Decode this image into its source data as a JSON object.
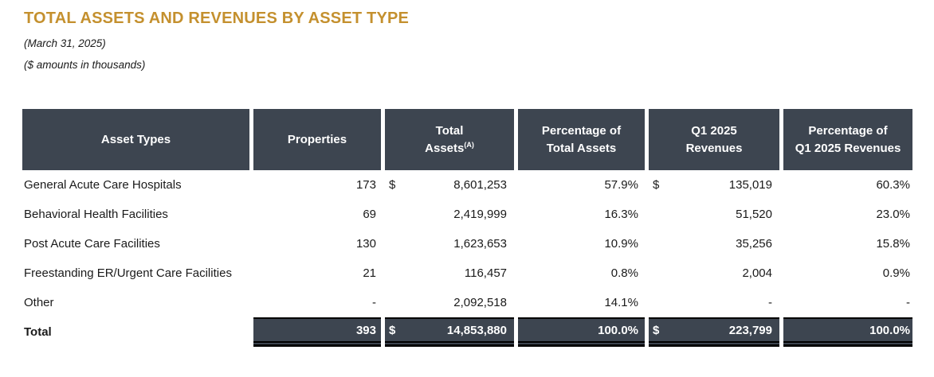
{
  "page": {
    "title": "TOTAL ASSETS AND REVENUES BY ASSET TYPE",
    "subtitle_date": "(March 31, 2025)",
    "subtitle_units": "($ amounts in thousands)"
  },
  "colors": {
    "accent_gold": "#C4902E",
    "header_slate": "#3D4550",
    "underline_black": "#000000"
  },
  "table": {
    "columns": [
      {
        "label": "Asset Types"
      },
      {
        "label": "Properties"
      },
      {
        "label_line1": "Total",
        "label_line2": "Assets",
        "superscript": "(A)"
      },
      {
        "label_line1": "Percentage of",
        "label_line2": "Total Assets"
      },
      {
        "label_line1": "Q1 2025",
        "label_line2": "Revenues"
      },
      {
        "label_line1": "Percentage of",
        "label_line2": "Q1 2025 Revenues"
      }
    ],
    "rows": [
      {
        "asset_type": "General Acute Care Hospitals",
        "properties": "173",
        "total_assets_currency": "$",
        "total_assets": "8,601,253",
        "pct_total_assets": "57.9%",
        "q1_revenues_currency": "$",
        "q1_revenues": "135,019",
        "pct_q1_revenues": "60.3%"
      },
      {
        "asset_type": "Behavioral Health Facilities",
        "properties": "69",
        "total_assets_currency": "",
        "total_assets": "2,419,999",
        "pct_total_assets": "16.3%",
        "q1_revenues_currency": "",
        "q1_revenues": "51,520",
        "pct_q1_revenues": "23.0%"
      },
      {
        "asset_type": "Post Acute Care Facilities",
        "properties": "130",
        "total_assets_currency": "",
        "total_assets": "1,623,653",
        "pct_total_assets": "10.9%",
        "q1_revenues_currency": "",
        "q1_revenues": "35,256",
        "pct_q1_revenues": "15.8%"
      },
      {
        "asset_type": "Freestanding ER/Urgent Care Facilities",
        "properties": "21",
        "total_assets_currency": "",
        "total_assets": "116,457",
        "pct_total_assets": "0.8%",
        "q1_revenues_currency": "",
        "q1_revenues": "2,004",
        "pct_q1_revenues": "0.9%"
      },
      {
        "asset_type": "Other",
        "properties": "-",
        "total_assets_currency": "",
        "total_assets": "2,092,518",
        "pct_total_assets": "14.1%",
        "q1_revenues_currency": "",
        "q1_revenues": "-",
        "pct_q1_revenues": "-"
      }
    ],
    "total_row": {
      "label": "Total",
      "properties": "393",
      "total_assets_currency": "$",
      "total_assets": "14,853,880",
      "pct_total_assets": "100.0%",
      "q1_revenues_currency": "$",
      "q1_revenues": "223,799",
      "pct_q1_revenues": "100.0%"
    }
  }
}
